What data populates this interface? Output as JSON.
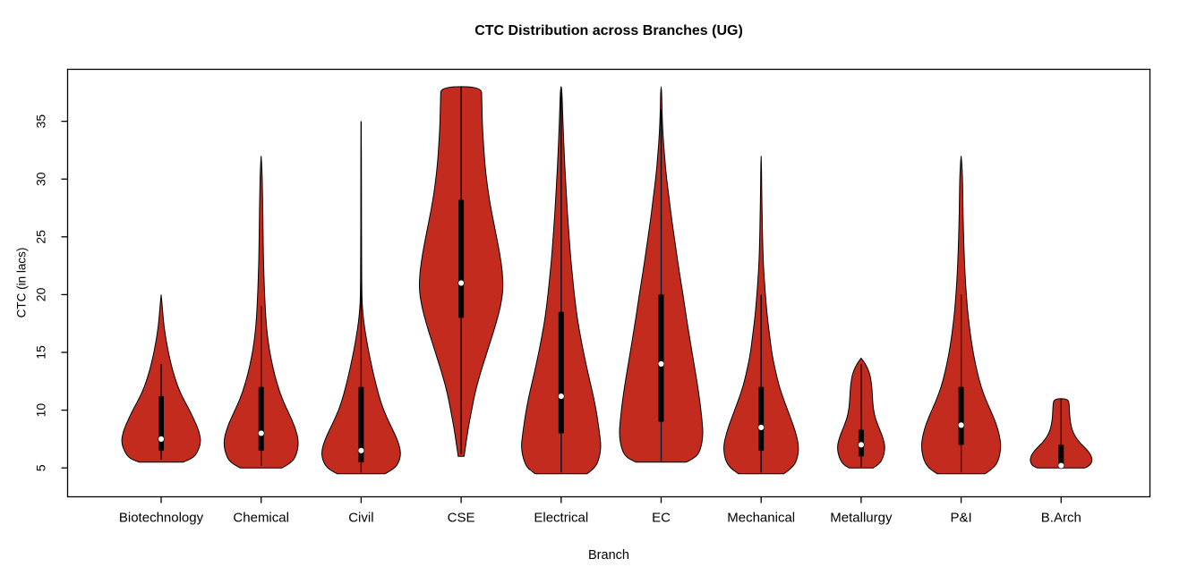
{
  "chart_data": {
    "type": "violin",
    "title": "CTC Distribution across Branches (UG)",
    "xlabel": "Branch",
    "ylabel": "CTC (in lacs)",
    "ylim": [
      2.5,
      39.5
    ],
    "y_ticks": [
      5,
      10,
      15,
      20,
      25,
      30,
      35
    ],
    "categories": [
      "Biotechnology",
      "Chemical",
      "Civil",
      "CSE",
      "Electrical",
      "EC",
      "Mechanical",
      "Metallurgy",
      "P&I",
      "B.Arch"
    ],
    "colors": {
      "violin_fill": "#c32b1e",
      "violin_stroke": "#000000",
      "box": "#000000",
      "median_dot": "#ffffff",
      "axis": "#000000"
    },
    "violins": [
      {
        "branch": "Biotechnology",
        "width": 0.95,
        "min": 5.5,
        "max": 20,
        "q1": 6.5,
        "q3": 11.2,
        "median": 7.5,
        "whisker_low": 5.7,
        "whisker_high": 14,
        "profile": [
          [
            5.5,
            0.55
          ],
          [
            5.8,
            0.78
          ],
          [
            6.3,
            0.9
          ],
          [
            7.2,
            1.0
          ],
          [
            8.2,
            0.95
          ],
          [
            9.2,
            0.82
          ],
          [
            10.2,
            0.68
          ],
          [
            11.2,
            0.52
          ],
          [
            12.2,
            0.4
          ],
          [
            13.5,
            0.28
          ],
          [
            15,
            0.18
          ],
          [
            16.5,
            0.1
          ],
          [
            18,
            0.05
          ],
          [
            19.3,
            0.02
          ],
          [
            20,
            0.0
          ]
        ]
      },
      {
        "branch": "Chemical",
        "width": 0.9,
        "min": 5,
        "max": 32,
        "q1": 6.5,
        "q3": 12,
        "median": 8,
        "whisker_low": 5.2,
        "whisker_high": 19,
        "profile": [
          [
            5,
            0.55
          ],
          [
            5.4,
            0.78
          ],
          [
            6,
            0.92
          ],
          [
            7.2,
            1.0
          ],
          [
            8.5,
            0.9
          ],
          [
            9.8,
            0.72
          ],
          [
            11,
            0.55
          ],
          [
            12.3,
            0.42
          ],
          [
            13.8,
            0.3
          ],
          [
            15.5,
            0.2
          ],
          [
            17.5,
            0.13
          ],
          [
            20,
            0.09
          ],
          [
            23,
            0.06
          ],
          [
            26,
            0.05
          ],
          [
            29,
            0.035
          ],
          [
            31,
            0.02
          ],
          [
            32,
            0.0
          ]
        ]
      },
      {
        "branch": "Civil",
        "width": 0.95,
        "min": 4.5,
        "max": 35,
        "q1": 5.5,
        "q3": 12,
        "median": 6.5,
        "whisker_low": 4.6,
        "whisker_high": 35,
        "profile": [
          [
            4.5,
            0.6
          ],
          [
            4.9,
            0.82
          ],
          [
            5.5,
            0.95
          ],
          [
            6.4,
            1.0
          ],
          [
            7.5,
            0.9
          ],
          [
            8.8,
            0.72
          ],
          [
            10,
            0.56
          ],
          [
            11.3,
            0.44
          ],
          [
            12.8,
            0.33
          ],
          [
            14.2,
            0.24
          ],
          [
            15.6,
            0.16
          ],
          [
            17,
            0.09
          ],
          [
            18.4,
            0.04
          ],
          [
            20,
            0.015
          ],
          [
            24,
            0.01
          ],
          [
            28,
            0.008
          ],
          [
            32,
            0.006
          ],
          [
            35,
            0.0
          ]
        ]
      },
      {
        "branch": "CSE",
        "width": 1.0,
        "min": 6,
        "max": 38,
        "q1": 18,
        "q3": 28.2,
        "median": 21,
        "whisker_low": 6.2,
        "whisker_high": 38,
        "profile": [
          [
            6,
            0.07
          ],
          [
            7,
            0.11
          ],
          [
            8.5,
            0.17
          ],
          [
            10,
            0.25
          ],
          [
            11.5,
            0.33
          ],
          [
            13,
            0.44
          ],
          [
            14.5,
            0.57
          ],
          [
            16,
            0.7
          ],
          [
            17.5,
            0.83
          ],
          [
            19,
            0.94
          ],
          [
            20.5,
            1.0
          ],
          [
            22,
            0.98
          ],
          [
            23.5,
            0.92
          ],
          [
            25,
            0.84
          ],
          [
            26.5,
            0.76
          ],
          [
            28,
            0.68
          ],
          [
            29.5,
            0.62
          ],
          [
            31,
            0.57
          ],
          [
            33,
            0.53
          ],
          [
            35,
            0.5
          ],
          [
            37,
            0.49
          ],
          [
            38,
            0.48
          ]
        ]
      },
      {
        "branch": "Electrical",
        "width": 0.95,
        "min": 4.5,
        "max": 38,
        "q1": 8,
        "q3": 18.5,
        "median": 11.2,
        "whisker_low": 4.6,
        "whisker_high": 38,
        "profile": [
          [
            4.5,
            0.65
          ],
          [
            5,
            0.85
          ],
          [
            5.8,
            0.95
          ],
          [
            6.8,
            1.0
          ],
          [
            8,
            0.96
          ],
          [
            9.5,
            0.9
          ],
          [
            11,
            0.82
          ],
          [
            12.5,
            0.72
          ],
          [
            14,
            0.62
          ],
          [
            15.5,
            0.53
          ],
          [
            17,
            0.45
          ],
          [
            18.5,
            0.38
          ],
          [
            20,
            0.33
          ],
          [
            22,
            0.27
          ],
          [
            24,
            0.22
          ],
          [
            26,
            0.18
          ],
          [
            28,
            0.14
          ],
          [
            30,
            0.11
          ],
          [
            32,
            0.08
          ],
          [
            34,
            0.055
          ],
          [
            36,
            0.035
          ],
          [
            38,
            0.015
          ]
        ]
      },
      {
        "branch": "EC",
        "width": 1.0,
        "min": 5.5,
        "max": 38,
        "q1": 9,
        "q3": 20,
        "median": 14,
        "whisker_low": 5.6,
        "whisker_high": 36,
        "profile": [
          [
            5.5,
            0.6
          ],
          [
            5.9,
            0.82
          ],
          [
            6.5,
            0.93
          ],
          [
            7.8,
            1.0
          ],
          [
            9.2,
            0.97
          ],
          [
            10.8,
            0.92
          ],
          [
            12.5,
            0.85
          ],
          [
            14.2,
            0.77
          ],
          [
            16,
            0.69
          ],
          [
            18,
            0.6
          ],
          [
            20,
            0.52
          ],
          [
            22,
            0.43
          ],
          [
            24,
            0.35
          ],
          [
            26,
            0.27
          ],
          [
            28,
            0.2
          ],
          [
            30,
            0.13
          ],
          [
            32,
            0.08
          ],
          [
            34,
            0.04
          ],
          [
            36,
            0.02
          ],
          [
            38,
            0.008
          ]
        ]
      },
      {
        "branch": "Mechanical",
        "width": 0.9,
        "min": 4.5,
        "max": 32,
        "q1": 6.5,
        "q3": 12,
        "median": 8.5,
        "whisker_low": 4.6,
        "whisker_high": 20,
        "profile": [
          [
            4.5,
            0.6
          ],
          [
            5,
            0.82
          ],
          [
            5.7,
            0.95
          ],
          [
            6.8,
            1.0
          ],
          [
            8,
            0.92
          ],
          [
            9.3,
            0.78
          ],
          [
            10.7,
            0.62
          ],
          [
            12,
            0.48
          ],
          [
            13.5,
            0.37
          ],
          [
            15,
            0.28
          ],
          [
            16.8,
            0.21
          ],
          [
            18.5,
            0.15
          ],
          [
            20.5,
            0.1
          ],
          [
            22.5,
            0.06
          ],
          [
            25,
            0.035
          ],
          [
            28,
            0.02
          ],
          [
            31,
            0.01
          ],
          [
            32,
            0.0
          ]
        ]
      },
      {
        "branch": "Metallurgy",
        "width": 0.57,
        "min": 5,
        "max": 14.5,
        "q1": 6,
        "q3": 8.3,
        "median": 7,
        "whisker_low": 5.1,
        "whisker_high": 14,
        "profile": [
          [
            5,
            0.5
          ],
          [
            5.3,
            0.75
          ],
          [
            5.9,
            0.92
          ],
          [
            6.7,
            1.0
          ],
          [
            7.5,
            0.93
          ],
          [
            8.3,
            0.78
          ],
          [
            9.2,
            0.6
          ],
          [
            10.2,
            0.5
          ],
          [
            11.2,
            0.47
          ],
          [
            12.2,
            0.44
          ],
          [
            13.2,
            0.36
          ],
          [
            14,
            0.18
          ],
          [
            14.5,
            0.0
          ]
        ]
      },
      {
        "branch": "P&I",
        "width": 0.95,
        "min": 4.5,
        "max": 32,
        "q1": 7,
        "q3": 12,
        "median": 8.7,
        "whisker_low": 4.6,
        "whisker_high": 20,
        "profile": [
          [
            4.5,
            0.6
          ],
          [
            5,
            0.82
          ],
          [
            5.7,
            0.94
          ],
          [
            6.8,
            1.0
          ],
          [
            7.8,
            0.96
          ],
          [
            8.8,
            0.88
          ],
          [
            9.8,
            0.76
          ],
          [
            10.8,
            0.63
          ],
          [
            12,
            0.5
          ],
          [
            13.3,
            0.4
          ],
          [
            14.8,
            0.31
          ],
          [
            16.3,
            0.24
          ],
          [
            18,
            0.18
          ],
          [
            19.5,
            0.14
          ],
          [
            21.5,
            0.1
          ],
          [
            24,
            0.07
          ],
          [
            26.5,
            0.05
          ],
          [
            29,
            0.04
          ],
          [
            31,
            0.025
          ],
          [
            32,
            0.0
          ]
        ]
      },
      {
        "branch": "B.Arch",
        "width": 0.75,
        "min": 5,
        "max": 11,
        "q1": 5,
        "q3": 7,
        "median": 5.2,
        "whisker_low": 5,
        "whisker_high": 11,
        "profile": [
          [
            5,
            0.75
          ],
          [
            5.2,
            0.93
          ],
          [
            5.8,
            1.0
          ],
          [
            6.5,
            0.85
          ],
          [
            7.2,
            0.58
          ],
          [
            8,
            0.38
          ],
          [
            8.8,
            0.3
          ],
          [
            9.6,
            0.27
          ],
          [
            10.4,
            0.26
          ],
          [
            11,
            0.22
          ]
        ]
      }
    ]
  }
}
